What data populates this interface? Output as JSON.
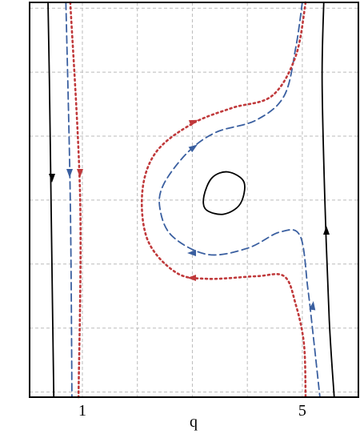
{
  "chart_data": {
    "type": "line",
    "xlabel": "q",
    "xlim": [
      0.04,
      6.02
    ],
    "ylim": [
      -3.08,
      3.09
    ],
    "xticks": [
      1,
      {
        "value": 2,
        "label": null
      },
      {
        "value": 3,
        "label": null
      },
      {
        "value": 4,
        "label": null
      },
      5
    ],
    "yticks": [
      {
        "value": -3,
        "label": null
      },
      {
        "value": -2,
        "label": null
      },
      {
        "value": -1,
        "label": null
      },
      {
        "value": 0,
        "label": null
      },
      {
        "value": 1,
        "label": null
      },
      {
        "value": 2,
        "label": null
      },
      {
        "value": 3,
        "label": null
      }
    ],
    "grid": true,
    "series": [
      {
        "color": "#000000",
        "dash": "solid",
        "x": [
          0.375,
          0.4,
          0.43,
          0.46,
          0.48
        ],
        "values": [
          3.09,
          1.875,
          0,
          -1.875,
          -3.08
        ]
      },
      {
        "color": "#000000",
        "dash": "solid",
        "x": [
          5.39,
          5.36,
          5.41,
          5.49,
          5.58
        ],
        "values": [
          3.09,
          1.875,
          0,
          -1.875,
          -3.08
        ]
      },
      {
        "color": "#000000",
        "dash": "solid",
        "closed": true,
        "x": [
          3.21,
          3.36,
          3.65,
          3.94,
          3.87,
          3.57,
          3.25
        ],
        "values": [
          0.06,
          0.35,
          0.44,
          0.28,
          -0.06,
          -0.22,
          -0.15
        ]
      },
      {
        "color": "#3a5fa0",
        "dash": "dashed",
        "x": [
          0.7,
          0.78,
          0.81
        ],
        "values": [
          3.09,
          0,
          -3.08
        ]
      },
      {
        "color": "#c0393b",
        "dash": "dotted",
        "x": [
          0.78,
          0.96,
          0.93
        ],
        "values": [
          3.09,
          0,
          -3.08
        ]
      },
      {
        "color": "#3a5fa0",
        "dash": "dashed",
        "x": [
          5.0,
          4.88,
          4.67,
          4.16,
          3.43,
          2.92,
          2.48,
          2.41,
          2.63,
          3.28,
          4.01,
          4.59,
          4.96,
          5.1,
          5.2,
          5.32
        ],
        "values": [
          3.09,
          2.38,
          1.63,
          1.25,
          1.06,
          0.75,
          0.25,
          -0.13,
          -0.56,
          -0.85,
          -0.75,
          -0.5,
          -0.56,
          -1.38,
          -2.13,
          -3.08
        ]
      },
      {
        "color": "#c0393b",
        "dash": "dotted",
        "x": [
          5.06,
          4.88,
          4.45,
          3.72,
          2.99,
          2.34,
          2.09,
          2.19,
          2.7,
          3.28,
          4.16,
          4.67,
          4.88,
          5.03,
          5.06
        ],
        "values": [
          3.09,
          2.25,
          1.63,
          1.44,
          1.19,
          0.75,
          0.13,
          -0.63,
          -1.13,
          -1.23,
          -1.19,
          -1.19,
          -1.63,
          -2.25,
          -3.08
        ]
      }
    ]
  }
}
